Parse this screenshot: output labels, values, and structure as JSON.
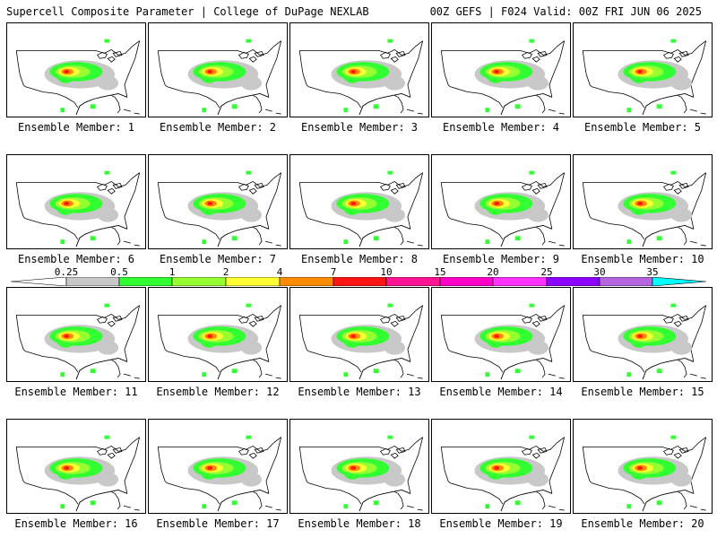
{
  "header": {
    "title": "Supercell Composite Parameter | College of DuPage NEXLAB",
    "valid": "00Z GEFS | F024 Valid: 00Z FRI JUN 06 2025"
  },
  "legend": {
    "ticks": [
      "0.25",
      "0.5",
      "1",
      "2",
      "4",
      "7",
      "10",
      "15",
      "20",
      "25",
      "30",
      "35"
    ],
    "colors": [
      "#c8c8c8",
      "#32ff32",
      "#96ff32",
      "#ffff32",
      "#ff8c00",
      "#ff1414",
      "#ff1493",
      "#ff00c8",
      "#ff32ff",
      "#8c00ff",
      "#b464dc",
      "#00ffff"
    ]
  },
  "panels": [
    {
      "label": "Ensemble Member: 1"
    },
    {
      "label": "Ensemble Member: 2"
    },
    {
      "label": "Ensemble Member: 3"
    },
    {
      "label": "Ensemble Member: 4"
    },
    {
      "label": "Ensemble Member: 5"
    },
    {
      "label": "Ensemble Member: 6"
    },
    {
      "label": "Ensemble Member: 7"
    },
    {
      "label": "Ensemble Member: 8"
    },
    {
      "label": "Ensemble Member: 9"
    },
    {
      "label": "Ensemble Member: 10"
    },
    {
      "label": "Ensemble Member: 11"
    },
    {
      "label": "Ensemble Member: 12"
    },
    {
      "label": "Ensemble Member: 13"
    },
    {
      "label": "Ensemble Member: 14"
    },
    {
      "label": "Ensemble Member: 15"
    },
    {
      "label": "Ensemble Member: 16"
    },
    {
      "label": "Ensemble Member: 17"
    },
    {
      "label": "Ensemble Member: 18"
    },
    {
      "label": "Ensemble Member: 19"
    },
    {
      "label": "Ensemble Member: 20"
    }
  ]
}
